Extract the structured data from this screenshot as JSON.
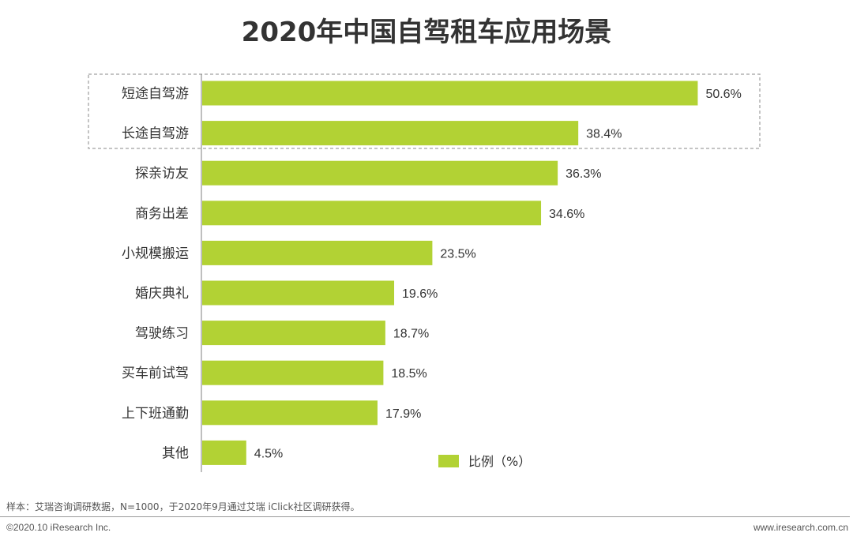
{
  "chart_data": {
    "type": "bar",
    "orientation": "horizontal",
    "title": "2020年中国自驾租车应用场景",
    "categories": [
      "短途自驾游",
      "长途自驾游",
      "探亲访友",
      "商务出差",
      "小规模搬运",
      "婚庆典礼",
      "驾驶练习",
      "买车前试驾",
      "上下班通勤",
      "其他"
    ],
    "series": [
      {
        "name": "比例（%）",
        "values": [
          50.6,
          38.4,
          36.3,
          34.6,
          23.5,
          19.6,
          18.7,
          18.5,
          17.9,
          4.5
        ],
        "labels": [
          "50.6%",
          "38.4%",
          "36.3%",
          "34.6%",
          "23.5%",
          "19.6%",
          "18.7%",
          "18.5%",
          "17.9%",
          "4.5%"
        ]
      }
    ],
    "highlighted_categories": [
      "短途自驾游",
      "长途自驾游"
    ],
    "legend_position": "bottom-right",
    "grid": false,
    "bar_color": "#b2d234",
    "xlabel": "",
    "ylabel": ""
  },
  "footer": {
    "note": "样本：艾瑞咨询调研数据，N=1000，于2020年9月通过艾瑞 iClick社区调研获得。",
    "copyright": "©2020.10 iResearch Inc.",
    "website": "www.iresearch.com.cn"
  }
}
